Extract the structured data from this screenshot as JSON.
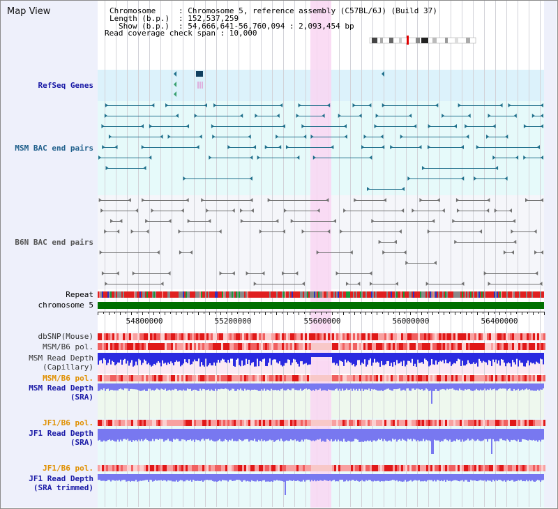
{
  "title": "Map View",
  "info": {
    "chromosome_key": "Chromosome",
    "chromosome_value": ": Chromosome 5, reference assembly (C57BL/6J) (Build 37)",
    "length_key": "Length (b.p.)",
    "length_value": ": 152,537,259",
    "show_key": "Show (b.p.)",
    "show_value": ": 54,666,641-56,760,094 : 2,093,454 bp",
    "coverage_text": "Read coverage check span : 10,000"
  },
  "tracks": {
    "refseq": {
      "label": "RefSeq Genes",
      "color": "#1a1aa6"
    },
    "msm_bac": {
      "label": "MSM BAC end pairs",
      "color": "#1f5f8b"
    },
    "b6n_bac": {
      "label": "B6N BAC end pairs",
      "color": "#555555"
    },
    "repeat": {
      "label": "Repeat",
      "color": "#000000"
    },
    "chromosome": {
      "label": "chromosome 5",
      "color": "#000000"
    },
    "dbsnp": {
      "label": "dbSNP(Mouse)",
      "color": "#333333"
    },
    "msm_b6_pol_1": {
      "label": "MSM/B6 pol.",
      "color": "#333333"
    },
    "msm_depth_cap": {
      "label": "MSM Read Depth\n(Capillary)",
      "color": "#333333"
    },
    "msm_b6_pol_2": {
      "label": "MSM/B6 pol.",
      "color": "#e09000"
    },
    "msm_depth_sra": {
      "label": "MSM Read Depth\n(SRA)",
      "color": "#1a1aa6"
    },
    "jf1_b6_pol_1": {
      "label": "JF1/B6 pol.",
      "color": "#e09000"
    },
    "jf1_depth_sra": {
      "label": "JF1 Read Depth\n(SRA)",
      "color": "#1a1aa6"
    },
    "jf1_b6_pol_2": {
      "label": "JF1/B6 pol.",
      "color": "#e09000"
    },
    "jf1_depth_trim": {
      "label": "JF1 Read Depth\n(SRA trimmed)",
      "color": "#1a1aa6"
    }
  },
  "axis": {
    "ticks": [
      "54800000",
      "55200000",
      "55600000",
      "56000000",
      "56400000"
    ]
  },
  "colors": {
    "highlight": "#f9d6f2",
    "refseq_bg": "#dcf2fb",
    "msm_bg": "#e6fafa",
    "b6n_bg": "#f5f6fa",
    "chromosome": "#007000",
    "gene_feature": "#1f6f8b",
    "b6n_feature": "#707070",
    "depth_blue": "#2a2ae0",
    "depth_light": "#7878f0"
  }
}
